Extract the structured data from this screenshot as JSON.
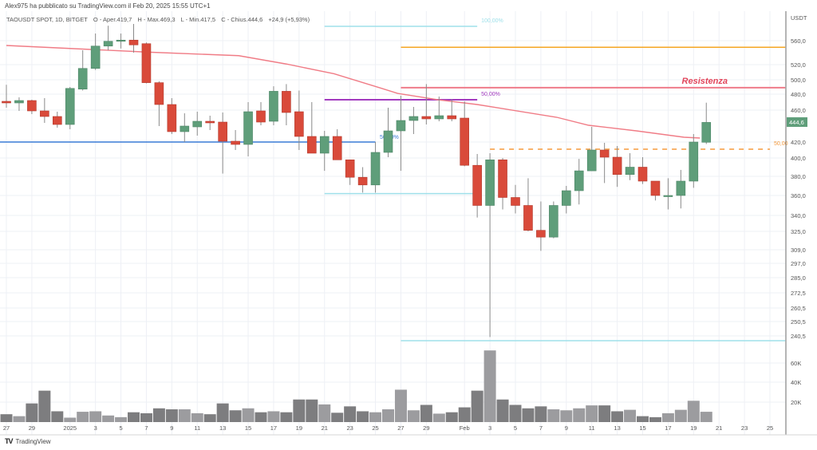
{
  "header": {
    "published": "Alex975 ha pubblicato su TradingView.com il Feb 20, 2025 15:55 UTC+1"
  },
  "legend": {
    "symbol": "TAOUSDT SPOT, 1D, BITGET",
    "open": "O - Aper.419,7",
    "high": "H - Max.469,3",
    "low": "L - Min.417,5",
    "close": "C - Chius.444,6",
    "change": "+24,9 (+5,93%)"
  },
  "branding": {
    "logo_text": "TradingView"
  },
  "colors": {
    "up": "#5f9e7a",
    "down": "#d94a3a",
    "ma": "#f07c86",
    "vol_up": "#9c9c9f",
    "vol_down": "#7d7d7f",
    "grid": "#eef0f5"
  },
  "chart_data": {
    "type": "candlestick",
    "currency_label": "USDT",
    "last_price_label": "444,6",
    "y_ticks": [
      "560,0",
      "520,0",
      "500,0",
      "480,0",
      "460,0",
      "420,0",
      "400,0",
      "380,0",
      "360,0",
      "340,0",
      "325,0",
      "309,0",
      "297,0",
      "285,0",
      "272,5",
      "260,5",
      "250,5",
      "240,5"
    ],
    "volume_ticks": [
      "60K",
      "40K",
      "20K"
    ],
    "x_ticks": [
      "27",
      "29",
      "2025",
      "3",
      "5",
      "7",
      "9",
      "11",
      "13",
      "15",
      "17",
      "19",
      "21",
      "23",
      "25",
      "27",
      "29",
      "Feb",
      "3",
      "5",
      "7",
      "9",
      "11",
      "13",
      "15",
      "17",
      "19",
      "21",
      "23",
      "25"
    ],
    "x_tick_days": [
      0,
      2,
      5,
      7,
      9,
      11,
      13,
      15,
      17,
      19,
      21,
      23,
      25,
      27,
      29,
      31,
      33,
      36,
      38,
      40,
      42,
      44,
      46,
      48,
      50,
      52,
      54,
      56,
      58,
      60
    ],
    "first_date": "Dec 27, 2024",
    "candles": [
      [
        471,
        493,
        463,
        469,
        8
      ],
      [
        469,
        476,
        459,
        472,
        6
      ],
      [
        472,
        473,
        455,
        459,
        19
      ],
      [
        459,
        475,
        444,
        452,
        32
      ],
      [
        452,
        458,
        438,
        442,
        11
      ],
      [
        442,
        490,
        436,
        488,
        4.5
      ],
      [
        487,
        544,
        485,
        515,
        10.5
      ],
      [
        515,
        572,
        513,
        551,
        11
      ],
      [
        551,
        585,
        544,
        559,
        6.7
      ],
      [
        559,
        572,
        547,
        561,
        5
      ],
      [
        561,
        588,
        540,
        553,
        10
      ],
      [
        555,
        557,
        495,
        496,
        9
      ],
      [
        496,
        498,
        440,
        467,
        14
      ],
      [
        467,
        475,
        430,
        433,
        13
      ],
      [
        433,
        456,
        420,
        440,
        13
      ],
      [
        439,
        458,
        428,
        446,
        9
      ],
      [
        446,
        453,
        435,
        444,
        8
      ],
      [
        445,
        457,
        383,
        421,
        19
      ],
      [
        421,
        435,
        410,
        417,
        12
      ],
      [
        417,
        470,
        402,
        458,
        14
      ],
      [
        459,
        470,
        441,
        445,
        10
      ],
      [
        446,
        491,
        441,
        484,
        11
      ],
      [
        484,
        494,
        441,
        457,
        10
      ],
      [
        458,
        485,
        410,
        427,
        23
      ],
      [
        427,
        470,
        406,
        406,
        23
      ],
      [
        406,
        434,
        386,
        427,
        18
      ],
      [
        427,
        436,
        398,
        398,
        9.5
      ],
      [
        398,
        398,
        371,
        379,
        16
      ],
      [
        379,
        390,
        363,
        371,
        11
      ],
      [
        371,
        420,
        363,
        407,
        10
      ],
      [
        407,
        463,
        401,
        434,
        13
      ],
      [
        434,
        478,
        386,
        447,
        33
      ],
      [
        447,
        464,
        430,
        452,
        12
      ],
      [
        452,
        494,
        442,
        449,
        17.5
      ],
      [
        449,
        477,
        446,
        453,
        8.6
      ],
      [
        453,
        474,
        446,
        449,
        10
      ],
      [
        450,
        471,
        391,
        392,
        15
      ],
      [
        392,
        405,
        338,
        350,
        32
      ],
      [
        350,
        406,
        239,
        398,
        73
      ],
      [
        398,
        400,
        346,
        358,
        23
      ],
      [
        358,
        371,
        342,
        350,
        17.5
      ],
      [
        350,
        378,
        325,
        326,
        14
      ],
      [
        326,
        354,
        308,
        320,
        16
      ],
      [
        320,
        354,
        319,
        350,
        13
      ],
      [
        350,
        370,
        342,
        365,
        12
      ],
      [
        365,
        399,
        351,
        386,
        14
      ],
      [
        386,
        439,
        386,
        410,
        17
      ],
      [
        410,
        419,
        373,
        401,
        17
      ],
      [
        401,
        415,
        369,
        382,
        11
      ],
      [
        382,
        406,
        376,
        390,
        12.5
      ],
      [
        390,
        401,
        372,
        375,
        6
      ],
      [
        375,
        375,
        355,
        360,
        5
      ],
      [
        360,
        378,
        346,
        360,
        9
      ],
      [
        360,
        387,
        347,
        375,
        12.5
      ],
      [
        375,
        430,
        368,
        420,
        21.7
      ],
      [
        419.7,
        469.3,
        417.5,
        444.6,
        10.5
      ]
    ],
    "candle_fields": [
      "open",
      "high",
      "low",
      "close",
      "volume_K"
    ],
    "moving_average": [
      [
        0,
        552
      ],
      [
        7,
        545
      ],
      [
        11,
        541
      ],
      [
        18.25,
        535
      ],
      [
        22,
        521
      ],
      [
        25.75,
        508
      ],
      [
        29.5,
        488
      ],
      [
        30.75,
        481
      ],
      [
        33.9,
        473
      ],
      [
        37,
        467
      ],
      [
        43.25,
        451
      ],
      [
        45.75,
        441
      ],
      [
        49.5,
        434
      ],
      [
        53.25,
        426
      ],
      [
        54.5,
        425
      ]
    ],
    "drawings": [
      {
        "name": "fib-100",
        "price": 584,
        "from_day": 25,
        "to_day": 37,
        "color": "#9fe0ea",
        "label": "100,00%"
      },
      {
        "name": "fib-50-purple",
        "price": 473,
        "from_day": 25,
        "to_day": 37,
        "color": "#a23bbf",
        "label": "50,00%"
      },
      {
        "name": "fib-0",
        "price": 362,
        "from_day": 25,
        "to_day": 37,
        "color": "#9fe0ea",
        "label": ""
      },
      {
        "name": "support-blue",
        "price": 420,
        "from_day": -1,
        "to_day": 29,
        "color": "#3a7bd5",
        "label": "50,00%"
      },
      {
        "name": "orange-top",
        "price": 549,
        "from_day": 31,
        "to_day": 61.2,
        "color": "#f5a623",
        "label": ""
      },
      {
        "name": "resistance",
        "price": 489,
        "from_day": 31,
        "to_day": 61.2,
        "color": "#ef7b8a",
        "label": "Resistenza"
      },
      {
        "name": "fib-50-orange-dashed",
        "price": 411,
        "from_day": 38,
        "to_day": 60,
        "color": "#f59a3c",
        "label": "50,00",
        "dashed": true
      },
      {
        "name": "cyan-bottom",
        "price": 234,
        "from_day": 31,
        "to_day": 61.2,
        "color": "#9fe0ea",
        "label": ""
      }
    ]
  }
}
